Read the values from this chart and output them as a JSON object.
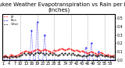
{
  "title": "Milwaukee Weather Evapotranspiration vs Rain per Day",
  "subtitle": "(Inches)",
  "legend_labels": [
    "ET",
    "Rain",
    "Other"
  ],
  "colors": [
    "red",
    "blue",
    "black"
  ],
  "background": "#ffffff",
  "ylim": [
    0,
    0.55
  ],
  "yticks": [
    0.0,
    0.1,
    0.2,
    0.3,
    0.4,
    0.5
  ],
  "num_points": 60,
  "vline_positions": [
    9,
    18,
    27,
    36,
    45,
    54
  ],
  "et_values": [
    0.05,
    0.06,
    0.04,
    0.05,
    0.07,
    0.06,
    0.05,
    0.06,
    0.07,
    0.08,
    0.09,
    0.1,
    0.11,
    0.1,
    0.09,
    0.1,
    0.11,
    0.12,
    0.13,
    0.12,
    0.11,
    0.12,
    0.13,
    0.12,
    0.11,
    0.1,
    0.09,
    0.12,
    0.11,
    0.12,
    0.13,
    0.14,
    0.13,
    0.12,
    0.13,
    0.14,
    0.13,
    0.12,
    0.11,
    0.12,
    0.11,
    0.1,
    0.11,
    0.1,
    0.09,
    0.08,
    0.09,
    0.1,
    0.09,
    0.08,
    0.07,
    0.08,
    0.09,
    0.08,
    0.07,
    0.06,
    0.07,
    0.06,
    0.05,
    0.06
  ],
  "rain_values": [
    0.0,
    0.0,
    0.0,
    0.0,
    0.0,
    0.0,
    0.0,
    0.0,
    0.0,
    0.0,
    0.0,
    0.0,
    0.0,
    0.0,
    0.0,
    0.35,
    0.0,
    0.0,
    0.45,
    0.0,
    0.0,
    0.0,
    0.3,
    0.0,
    0.0,
    0.0,
    0.0,
    0.0,
    0.0,
    0.0,
    0.0,
    0.0,
    0.0,
    0.0,
    0.0,
    0.0,
    0.0,
    0.0,
    0.0,
    0.0,
    0.0,
    0.0,
    0.0,
    0.0,
    0.15,
    0.0,
    0.0,
    0.2,
    0.0,
    0.0,
    0.0,
    0.1,
    0.0,
    0.0,
    0.0,
    0.0,
    0.0,
    0.0,
    0.0,
    0.0
  ],
  "other_values": [
    0.04,
    0.05,
    0.04,
    0.03,
    0.05,
    0.04,
    0.05,
    0.04,
    0.05,
    0.06,
    0.07,
    0.08,
    0.07,
    0.08,
    0.07,
    0.08,
    0.07,
    0.08,
    0.09,
    0.08,
    0.09,
    0.08,
    0.07,
    0.08,
    0.07,
    0.08,
    0.07,
    0.08,
    0.07,
    0.06,
    0.07,
    0.08,
    0.07,
    0.08,
    0.07,
    0.08,
    0.07,
    0.08,
    0.07,
    0.06,
    0.07,
    0.06,
    0.05,
    0.06,
    0.05,
    0.06,
    0.07,
    0.06,
    0.07,
    0.06,
    0.05,
    0.06,
    0.07,
    0.06,
    0.05,
    0.06,
    0.05,
    0.04,
    0.05,
    0.04
  ],
  "xtick_step": 3,
  "title_fontsize": 5,
  "tick_fontsize": 3.5
}
